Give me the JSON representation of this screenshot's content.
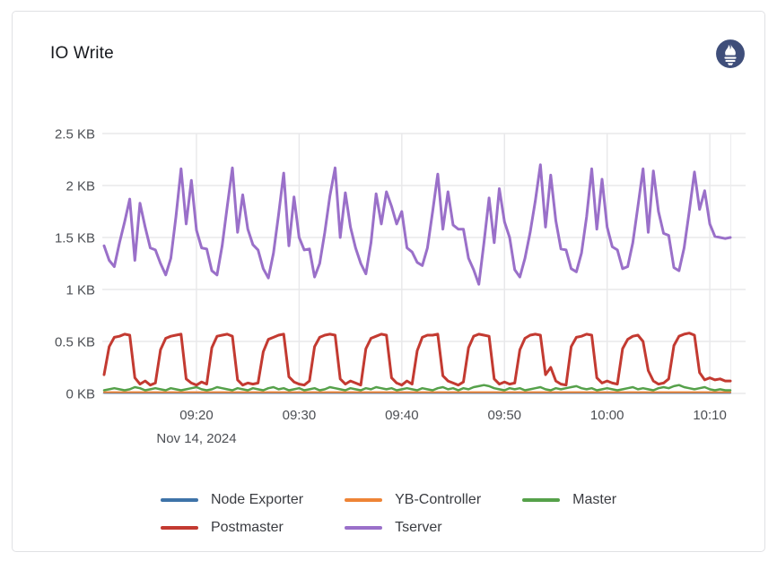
{
  "panel": {
    "title": "IO Write",
    "logo_icon": "prometheus-logo",
    "logo_color": "#3f4e7a"
  },
  "chart_data": {
    "type": "line",
    "title": "IO Write",
    "unit": "KB",
    "grid": true,
    "legend_position": "bottom",
    "x_axis_date_label": "Nov 14, 2024",
    "start_time": "09:11",
    "step_minutes": 0.5,
    "x_range": [
      0,
      61
    ],
    "y_range": [
      0,
      2.5
    ],
    "y_ticks": [
      {
        "v": 0.0,
        "label": "0 KB"
      },
      {
        "v": 0.5,
        "label": "0.5 KB"
      },
      {
        "v": 1.0,
        "label": "1 KB"
      },
      {
        "v": 1.5,
        "label": "1.5 KB"
      },
      {
        "v": 2.0,
        "label": "2 KB"
      },
      {
        "v": 2.5,
        "label": "2.5 KB"
      }
    ],
    "x_ticks": [
      {
        "t": 9,
        "label": "09:20"
      },
      {
        "t": 19,
        "label": "09:30"
      },
      {
        "t": 29,
        "label": "09:40"
      },
      {
        "t": 39,
        "label": "09:50"
      },
      {
        "t": 49,
        "label": "10:00"
      },
      {
        "t": 59,
        "label": "10:10"
      }
    ],
    "series": [
      {
        "name": "Node Exporter",
        "color": "#3e73a8",
        "constant": 0.005
      },
      {
        "name": "YB-Controller",
        "color": "#ee8436",
        "constant": 0.012
      },
      {
        "name": "Master",
        "color": "#55a14a",
        "values": [
          0.03,
          0.04,
          0.05,
          0.04,
          0.03,
          0.04,
          0.06,
          0.05,
          0.03,
          0.04,
          0.05,
          0.04,
          0.03,
          0.05,
          0.04,
          0.03,
          0.04,
          0.05,
          0.06,
          0.04,
          0.03,
          0.04,
          0.06,
          0.05,
          0.04,
          0.03,
          0.05,
          0.04,
          0.03,
          0.05,
          0.04,
          0.03,
          0.05,
          0.06,
          0.04,
          0.05,
          0.03,
          0.04,
          0.05,
          0.03,
          0.04,
          0.05,
          0.03,
          0.04,
          0.06,
          0.05,
          0.04,
          0.03,
          0.05,
          0.04,
          0.03,
          0.05,
          0.04,
          0.06,
          0.05,
          0.04,
          0.05,
          0.03,
          0.04,
          0.05,
          0.04,
          0.03,
          0.05,
          0.04,
          0.03,
          0.05,
          0.06,
          0.04,
          0.05,
          0.03,
          0.05,
          0.04,
          0.06,
          0.07,
          0.08,
          0.07,
          0.05,
          0.04,
          0.03,
          0.05,
          0.04,
          0.05,
          0.03,
          0.04,
          0.05,
          0.06,
          0.04,
          0.03,
          0.05,
          0.04,
          0.05,
          0.06,
          0.07,
          0.05,
          0.04,
          0.05,
          0.03,
          0.04,
          0.05,
          0.04,
          0.03,
          0.04,
          0.05,
          0.06,
          0.04,
          0.05,
          0.04,
          0.03,
          0.05,
          0.06,
          0.05,
          0.07,
          0.08,
          0.06,
          0.05,
          0.04,
          0.05,
          0.06,
          0.04,
          0.03,
          0.04,
          0.03,
          0.03
        ]
      },
      {
        "name": "Postmaster",
        "color": "#c33a31",
        "values": [
          0.18,
          0.45,
          0.54,
          0.55,
          0.57,
          0.56,
          0.15,
          0.09,
          0.12,
          0.08,
          0.1,
          0.42,
          0.53,
          0.55,
          0.56,
          0.57,
          0.14,
          0.1,
          0.08,
          0.11,
          0.09,
          0.44,
          0.55,
          0.56,
          0.57,
          0.55,
          0.13,
          0.08,
          0.1,
          0.09,
          0.1,
          0.4,
          0.52,
          0.54,
          0.56,
          0.57,
          0.16,
          0.11,
          0.09,
          0.08,
          0.12,
          0.45,
          0.54,
          0.56,
          0.57,
          0.56,
          0.14,
          0.09,
          0.12,
          0.1,
          0.08,
          0.43,
          0.53,
          0.55,
          0.57,
          0.56,
          0.15,
          0.1,
          0.08,
          0.12,
          0.09,
          0.41,
          0.54,
          0.56,
          0.56,
          0.57,
          0.17,
          0.12,
          0.1,
          0.08,
          0.11,
          0.44,
          0.55,
          0.57,
          0.56,
          0.55,
          0.14,
          0.09,
          0.11,
          0.09,
          0.1,
          0.42,
          0.53,
          0.56,
          0.57,
          0.56,
          0.18,
          0.25,
          0.12,
          0.09,
          0.08,
          0.45,
          0.54,
          0.55,
          0.57,
          0.56,
          0.15,
          0.1,
          0.12,
          0.1,
          0.09,
          0.43,
          0.52,
          0.55,
          0.56,
          0.5,
          0.22,
          0.12,
          0.09,
          0.1,
          0.14,
          0.46,
          0.55,
          0.57,
          0.58,
          0.56,
          0.2,
          0.13,
          0.15,
          0.13,
          0.14,
          0.12,
          0.12
        ]
      },
      {
        "name": "Tserver",
        "color": "#9a70c9",
        "values": [
          1.42,
          1.28,
          1.22,
          1.45,
          1.65,
          1.87,
          1.28,
          1.83,
          1.6,
          1.4,
          1.38,
          1.25,
          1.14,
          1.3,
          1.7,
          2.16,
          1.63,
          2.05,
          1.57,
          1.4,
          1.39,
          1.18,
          1.14,
          1.42,
          1.8,
          2.17,
          1.55,
          1.91,
          1.58,
          1.43,
          1.38,
          1.2,
          1.11,
          1.35,
          1.72,
          2.12,
          1.42,
          1.89,
          1.5,
          1.38,
          1.39,
          1.12,
          1.25,
          1.55,
          1.9,
          2.17,
          1.5,
          1.93,
          1.6,
          1.4,
          1.25,
          1.15,
          1.45,
          1.92,
          1.63,
          1.94,
          1.8,
          1.63,
          1.75,
          1.4,
          1.36,
          1.26,
          1.23,
          1.4,
          1.75,
          2.11,
          1.58,
          1.94,
          1.62,
          1.58,
          1.58,
          1.3,
          1.19,
          1.05,
          1.45,
          1.88,
          1.45,
          1.97,
          1.65,
          1.5,
          1.19,
          1.12,
          1.3,
          1.55,
          1.85,
          2.2,
          1.6,
          2.1,
          1.66,
          1.39,
          1.38,
          1.2,
          1.17,
          1.35,
          1.7,
          2.16,
          1.58,
          2.06,
          1.6,
          1.41,
          1.38,
          1.2,
          1.22,
          1.45,
          1.8,
          2.16,
          1.55,
          2.14,
          1.75,
          1.54,
          1.52,
          1.21,
          1.18,
          1.4,
          1.75,
          2.13,
          1.77,
          1.95,
          1.63,
          1.51,
          1.5,
          1.49,
          1.5
        ]
      }
    ]
  }
}
